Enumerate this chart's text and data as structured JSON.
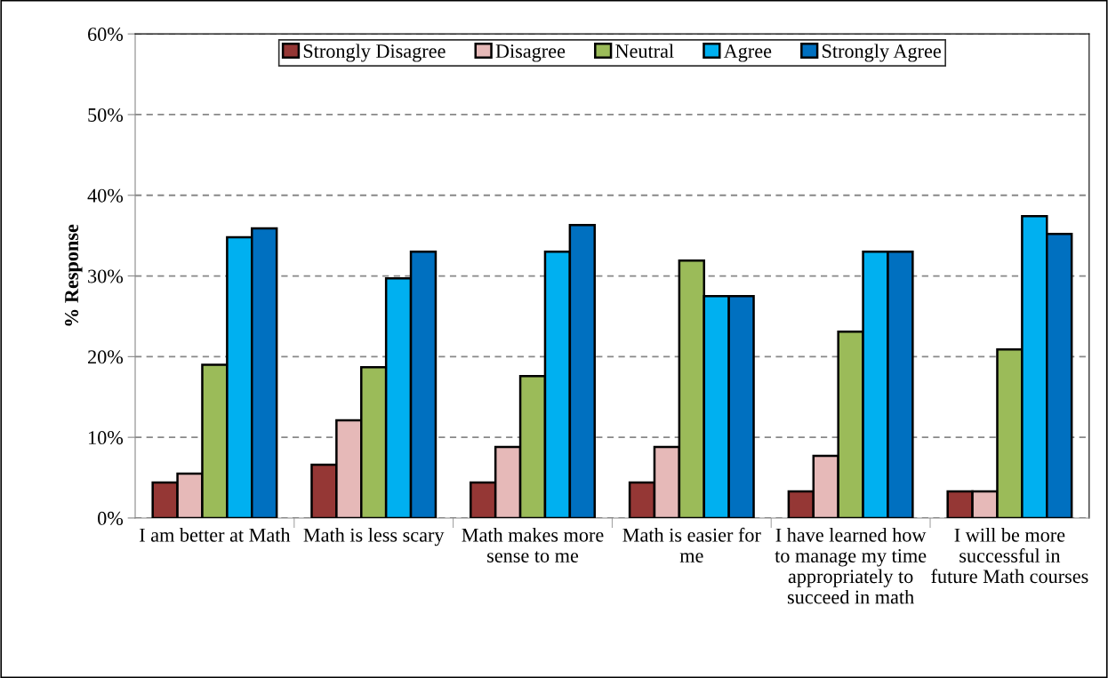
{
  "chart_data": {
    "type": "bar",
    "ylabel": "% Response",
    "categories": [
      "I am better at Math",
      "Math is less scary",
      "Math makes more sense to me",
      "Math is easier for me",
      "I have learned how to manage my time appropriately to succeed in math",
      "I will be more successful in future Math courses"
    ],
    "series": [
      {
        "name": "Strongly Disagree",
        "color": "#953735",
        "values": [
          4.4,
          6.6,
          4.4,
          4.4,
          3.3,
          3.3
        ]
      },
      {
        "name": "Disagree",
        "color": "#e6b9b8",
        "values": [
          5.5,
          12.1,
          8.8,
          8.8,
          7.7,
          3.3
        ]
      },
      {
        "name": "Neutral",
        "color": "#9bbb59",
        "values": [
          19.0,
          18.7,
          17.6,
          31.9,
          23.1,
          20.9
        ]
      },
      {
        "name": "Agree",
        "color": "#00b0f0",
        "values": [
          34.8,
          29.7,
          33.0,
          27.5,
          33.0,
          37.4
        ]
      },
      {
        "name": "Strongly Agree",
        "color": "#0070c0",
        "values": [
          35.9,
          33.0,
          36.3,
          27.5,
          33.0,
          35.2
        ]
      }
    ],
    "ylim": [
      0,
      60
    ],
    "yticks": [
      {
        "value": 0,
        "label": "0%"
      },
      {
        "value": 10,
        "label": "10%"
      },
      {
        "value": 20,
        "label": "20%"
      },
      {
        "value": 30,
        "label": "30%"
      },
      {
        "value": 40,
        "label": "40%"
      },
      {
        "value": 50,
        "label": "50%"
      },
      {
        "value": 60,
        "label": "60%"
      }
    ],
    "grid": "y",
    "legend": "top"
  }
}
